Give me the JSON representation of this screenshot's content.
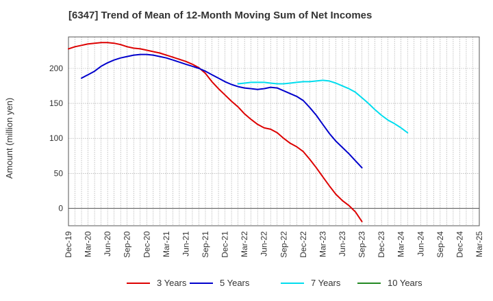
{
  "chart_data": {
    "type": "line",
    "title": "[6347]  Trend of Mean of 12-Month Moving Sum of Net Incomes",
    "xlabel": "",
    "ylabel": "Amount (million yen)",
    "ylim": [
      -25,
      245
    ],
    "yticks": [
      0,
      50,
      100,
      150,
      200
    ],
    "x_tick_labels": [
      "Dec-19",
      "Mar-20",
      "Jun-20",
      "Sep-20",
      "Dec-20",
      "Mar-21",
      "Jun-21",
      "Sep-21",
      "Dec-21",
      "Mar-22",
      "Jun-22",
      "Sep-22",
      "Dec-22",
      "Mar-23",
      "Jun-23",
      "Sep-23",
      "Dec-23",
      "Mar-24",
      "Jun-24",
      "Sep-24",
      "Dec-24",
      "Mar-25"
    ],
    "grid": true,
    "legend_position": "bottom",
    "series": [
      {
        "name": "3 Years",
        "color": "#dd0000",
        "points": [
          [
            0,
            228
          ],
          [
            1,
            231
          ],
          [
            2,
            233
          ],
          [
            3,
            235
          ],
          [
            4,
            236
          ],
          [
            5,
            237
          ],
          [
            6,
            237
          ],
          [
            7,
            236
          ],
          [
            8,
            234
          ],
          [
            9,
            231
          ],
          [
            10,
            229
          ],
          [
            11,
            228
          ],
          [
            12,
            226
          ],
          [
            13,
            224
          ],
          [
            14,
            222
          ],
          [
            15,
            219
          ],
          [
            16,
            216
          ],
          [
            17,
            213
          ],
          [
            18,
            210
          ],
          [
            19,
            206
          ],
          [
            20,
            201
          ],
          [
            21,
            193
          ],
          [
            22,
            181
          ],
          [
            23,
            171
          ],
          [
            24,
            162
          ],
          [
            25,
            153
          ],
          [
            26,
            145
          ],
          [
            27,
            135
          ],
          [
            28,
            127
          ],
          [
            29,
            120
          ],
          [
            30,
            115
          ],
          [
            31,
            113
          ],
          [
            32,
            108
          ],
          [
            33,
            100
          ],
          [
            34,
            93
          ],
          [
            35,
            88
          ],
          [
            36,
            81
          ],
          [
            37,
            70
          ],
          [
            38,
            58
          ],
          [
            39,
            45
          ],
          [
            40,
            32
          ],
          [
            41,
            20
          ],
          [
            42,
            11
          ],
          [
            43,
            4
          ],
          [
            44,
            -5
          ],
          [
            45,
            -19
          ]
        ]
      },
      {
        "name": "5 Years",
        "color": "#0000cc",
        "points": [
          [
            2,
            186
          ],
          [
            3,
            191
          ],
          [
            4,
            196
          ],
          [
            5,
            203
          ],
          [
            6,
            208
          ],
          [
            7,
            212
          ],
          [
            8,
            215
          ],
          [
            9,
            217
          ],
          [
            10,
            219
          ],
          [
            11,
            220
          ],
          [
            12,
            220
          ],
          [
            13,
            219
          ],
          [
            14,
            217
          ],
          [
            15,
            215
          ],
          [
            16,
            212
          ],
          [
            17,
            209
          ],
          [
            18,
            206
          ],
          [
            19,
            203
          ],
          [
            20,
            200
          ],
          [
            21,
            196
          ],
          [
            22,
            191
          ],
          [
            23,
            186
          ],
          [
            24,
            181
          ],
          [
            25,
            177
          ],
          [
            26,
            174
          ],
          [
            27,
            172
          ],
          [
            28,
            171
          ],
          [
            29,
            170
          ],
          [
            30,
            171
          ],
          [
            31,
            173
          ],
          [
            32,
            172
          ],
          [
            33,
            168
          ],
          [
            34,
            164
          ],
          [
            35,
            160
          ],
          [
            36,
            154
          ],
          [
            37,
            144
          ],
          [
            38,
            133
          ],
          [
            39,
            120
          ],
          [
            40,
            107
          ],
          [
            41,
            96
          ],
          [
            42,
            87
          ],
          [
            43,
            78
          ],
          [
            44,
            68
          ],
          [
            45,
            58
          ]
        ]
      },
      {
        "name": "7 Years",
        "color": "#00ddee",
        "points": [
          [
            26,
            178
          ],
          [
            27,
            179
          ],
          [
            28,
            180
          ],
          [
            29,
            180
          ],
          [
            30,
            180
          ],
          [
            31,
            179
          ],
          [
            32,
            178
          ],
          [
            33,
            178
          ],
          [
            34,
            179
          ],
          [
            35,
            180
          ],
          [
            36,
            181
          ],
          [
            37,
            181
          ],
          [
            38,
            182
          ],
          [
            39,
            183
          ],
          [
            40,
            182
          ],
          [
            41,
            179
          ],
          [
            42,
            175
          ],
          [
            43,
            171
          ],
          [
            44,
            166
          ],
          [
            45,
            158
          ],
          [
            46,
            150
          ],
          [
            47,
            141
          ],
          [
            48,
            133
          ],
          [
            49,
            126
          ],
          [
            50,
            121
          ],
          [
            51,
            115
          ],
          [
            52,
            108
          ]
        ]
      },
      {
        "name": "10 Years",
        "color": "#228822",
        "points": []
      }
    ]
  }
}
